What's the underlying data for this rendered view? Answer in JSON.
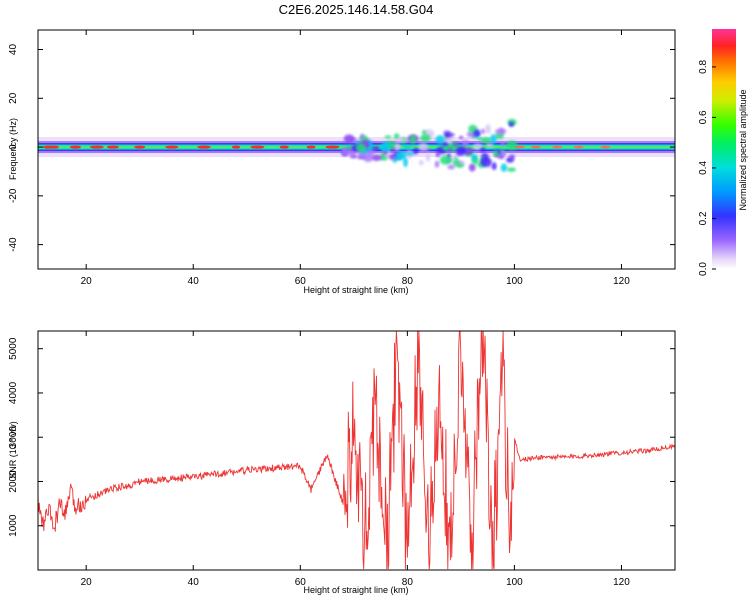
{
  "chart_data": [
    {
      "type": "heatmap",
      "title": "C2E6.2025.146.14.58.G04",
      "xlabel": "Height of straight line (km)",
      "ylabel": "Frequency (Hz)",
      "xlim": [
        11,
        130
      ],
      "ylim": [
        -50,
        48
      ],
      "xticks": [
        "20",
        "40",
        "60",
        "80",
        "100",
        "120"
      ],
      "yticks": [
        "40",
        "20",
        "0",
        "-20",
        "-40"
      ],
      "colorbar": {
        "label": "Normalized spectral amplitude",
        "range": [
          0.0,
          0.95
        ],
        "ticks": [
          "0.0",
          "0.2",
          "0.4",
          "0.6",
          "0.8"
        ],
        "colormap": "rainbow"
      },
      "band": {
        "center_freq_hz": 0,
        "description": "narrow band near 0 Hz along the full height range; broadened and scattered between ~70 and ~100 km"
      }
    },
    {
      "type": "line",
      "xlabel": "Height of straight line (km)",
      "ylabel": "SNR (10 * v/v)",
      "xlim": [
        11,
        130
      ],
      "ylim": [
        0,
        5400
      ],
      "xticks": [
        "20",
        "40",
        "60",
        "80",
        "100",
        "120"
      ],
      "yticks": [
        "1000",
        "2000",
        "3000",
        "4000",
        "5000"
      ],
      "color": "#ee3333",
      "x": [
        11,
        12,
        13,
        14,
        15,
        16,
        17,
        18,
        20,
        22,
        25,
        28,
        30,
        35,
        40,
        45,
        50,
        55,
        60,
        62,
        65,
        68,
        70,
        72,
        74,
        76,
        78,
        80,
        82,
        84,
        86,
        88,
        90,
        92,
        94,
        96,
        98,
        99,
        100,
        101,
        102,
        105,
        110,
        115,
        120,
        125,
        130
      ],
      "y": [
        1500,
        1000,
        1400,
        900,
        1500,
        1200,
        1800,
        1400,
        1600,
        1700,
        1850,
        1900,
        2000,
        2050,
        2100,
        2180,
        2250,
        2300,
        2350,
        1800,
        2600,
        1500,
        3000,
        200,
        4000,
        500,
        4600,
        700,
        5000,
        300,
        4500,
        200,
        4900,
        300,
        5200,
        200,
        4800,
        600,
        3000,
        2500,
        2500,
        2550,
        2550,
        2600,
        2650,
        2700,
        2800
      ]
    }
  ]
}
